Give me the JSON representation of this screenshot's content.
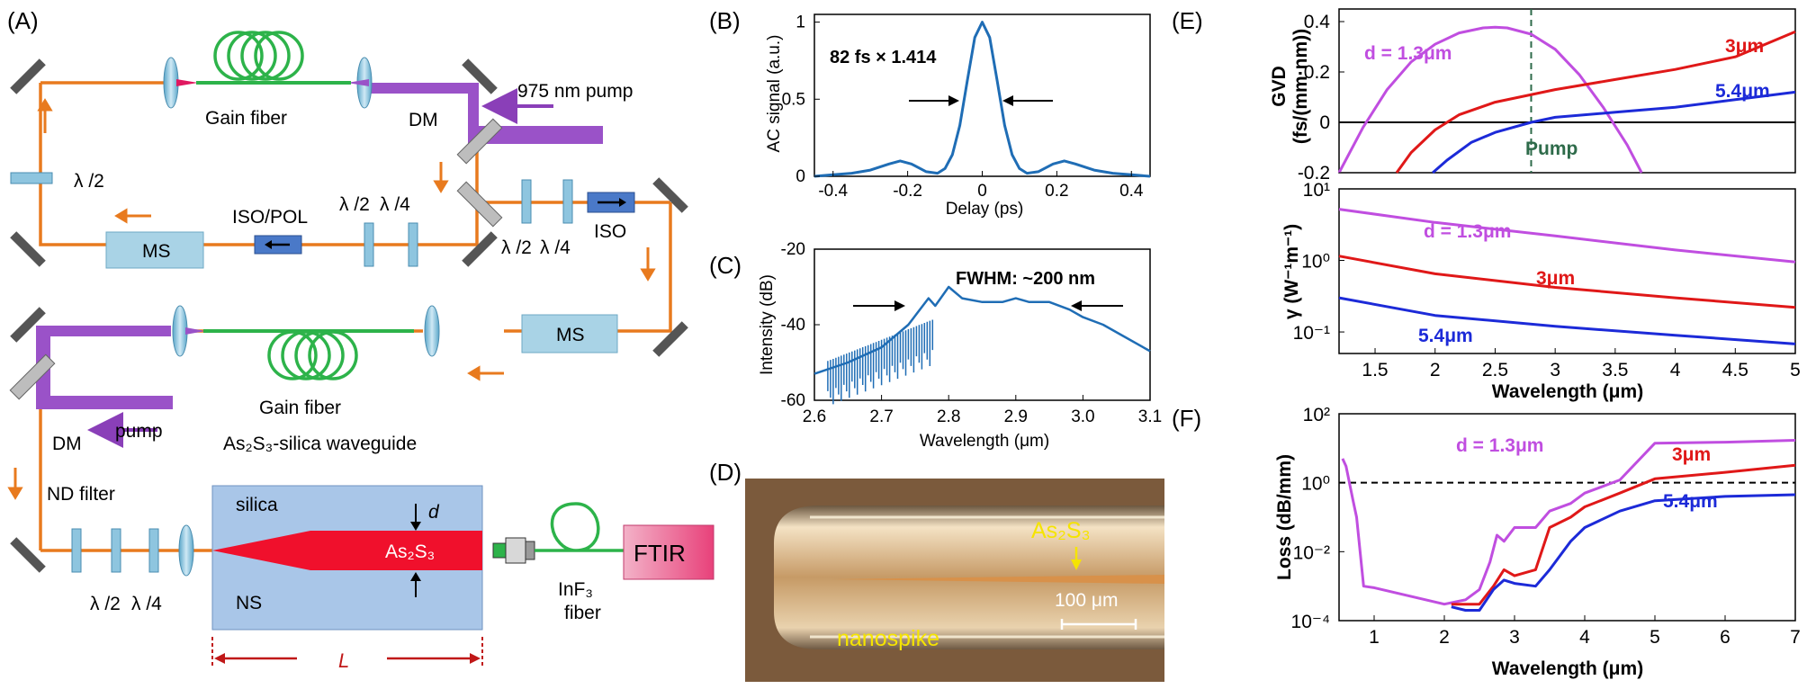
{
  "panels": {
    "a": {
      "letter": "(A)",
      "gain_fiber_top": "Gain fiber",
      "dm_top": "DM",
      "pump_975": "975 nm pump",
      "hwp_left": "λ /2",
      "iso_pol": "ISO/POL",
      "hwp_mid": "λ /2",
      "qwp_mid": "λ /4",
      "ms_left": "MS",
      "hwp_right": "λ /2",
      "qwp_right": "λ /4",
      "iso": "ISO",
      "ms_right": "MS",
      "gain_fiber_bottom": "Gain fiber",
      "dm_bottom": "DM",
      "pump": "pump",
      "waveguide_title": "As₂S₃-silica waveguide",
      "nd_filter": "ND filter",
      "hwp_bottom": "λ /2",
      "qwp_bottom": "λ /4",
      "silica": "silica",
      "ns": "NS",
      "d_label": "d",
      "as2s3": "As₂S₃",
      "length": "L",
      "inf3_fiber_1": "InF₃",
      "inf3_fiber_2": "fiber",
      "ftir": "FTIR"
    },
    "b": {
      "letter": "(B)",
      "annotation": "82 fs × 1.414",
      "xlabel": "Delay (ps)",
      "ylabel": "AC signal (a.u.)",
      "xticks": [
        "-0.4",
        "-0.2",
        "0",
        "0.2",
        "0.4"
      ],
      "yticks": [
        "0",
        "0.5",
        "1"
      ]
    },
    "c": {
      "letter": "(C)",
      "annotation": "FWHM:  ~200 nm",
      "xlabel": "Wavelength (μm)",
      "ylabel": "Intensity (dB)",
      "xticks": [
        "2.6",
        "2.7",
        "2.8",
        "2.9",
        "3.0",
        "3.1"
      ],
      "yticks": [
        "-20",
        "-40",
        "-60"
      ]
    },
    "d": {
      "letter": "(D)",
      "as2s3": "As₂S₃",
      "nanospike": "nanospike",
      "scale": "100 μm"
    },
    "e": {
      "letter": "(E)",
      "ylabel_top_1": "GVD",
      "ylabel_top_2": "(fs/(mm·nm))",
      "yticks_top": [
        "0.4",
        "0.2",
        "0",
        "-0.2"
      ],
      "pump_label": "Pump",
      "ylabel_bottom": "γ (W⁻¹m⁻¹)",
      "yticks_bottom": [
        "10¹",
        "10⁰",
        "10⁻¹"
      ],
      "xticks": [
        "1.5",
        "2",
        "2.5",
        "3",
        "3.5",
        "4",
        "4.5",
        "5"
      ],
      "xlabel": "Wavelength (μm)",
      "series": {
        "d13": "d = 1.3μm",
        "d3": "3μm",
        "d54": "5.4μm"
      }
    },
    "f": {
      "letter": "(F)",
      "ylabel": "Loss (dB/mm)",
      "yticks": [
        "10²",
        "10⁰",
        "10⁻²",
        "10⁻⁴"
      ],
      "xticks": [
        "1",
        "2",
        "3",
        "4",
        "5",
        "6",
        "7"
      ],
      "xlabel": "Wavelength (μm)",
      "series": {
        "d13": "d = 1.3μm",
        "d3": "3μm",
        "d54": "5.4μm"
      }
    }
  },
  "chart_data": [
    {
      "panel": "B",
      "type": "line",
      "xlim": [
        -0.45,
        0.45
      ],
      "ylim": [
        0,
        1.05
      ],
      "x": [
        -0.45,
        -0.4,
        -0.35,
        -0.3,
        -0.25,
        -0.22,
        -0.19,
        -0.15,
        -0.12,
        -0.1,
        -0.08,
        -0.06,
        -0.04,
        -0.02,
        0,
        0.02,
        0.04,
        0.06,
        0.08,
        0.1,
        0.12,
        0.15,
        0.19,
        0.22,
        0.25,
        0.3,
        0.35,
        0.4,
        0.45
      ],
      "y": [
        0.0,
        0.01,
        0.02,
        0.04,
        0.08,
        0.1,
        0.08,
        0.03,
        0.02,
        0.05,
        0.14,
        0.33,
        0.62,
        0.9,
        1.0,
        0.9,
        0.62,
        0.33,
        0.14,
        0.05,
        0.02,
        0.03,
        0.08,
        0.1,
        0.08,
        0.04,
        0.02,
        0.01,
        0.0
      ]
    },
    {
      "panel": "C",
      "type": "line",
      "xlim": [
        2.6,
        3.1
      ],
      "ylim": [
        -60,
        -20
      ],
      "x": [
        2.6,
        2.65,
        2.7,
        2.74,
        2.77,
        2.78,
        2.8,
        2.82,
        2.85,
        2.88,
        2.9,
        2.92,
        2.95,
        2.98,
        3.0,
        3.03,
        3.06,
        3.1
      ],
      "y": [
        -53,
        -50,
        -46,
        -40,
        -33,
        -35,
        -30,
        -33,
        -34,
        -34,
        -33,
        -34,
        -34,
        -36,
        -38,
        -40,
        -43,
        -47
      ]
    },
    {
      "panel": "E-top",
      "type": "line",
      "ylabel": "GVD (fs/(mm·nm))",
      "xlim": [
        1.2,
        5
      ],
      "ylim": [
        -0.2,
        0.45
      ],
      "pump_x": 2.8,
      "series": [
        {
          "name": "d = 1.3μm",
          "color": "#c04ee0",
          "x": [
            1.2,
            1.4,
            1.6,
            1.8,
            2.0,
            2.2,
            2.4,
            2.5,
            2.6,
            2.8,
            3.0,
            3.2,
            3.4,
            3.6,
            3.72
          ],
          "y": [
            -0.2,
            -0.02,
            0.13,
            0.24,
            0.31,
            0.355,
            0.375,
            0.378,
            0.375,
            0.35,
            0.29,
            0.19,
            0.06,
            -0.09,
            -0.2
          ]
        },
        {
          "name": "3μm",
          "color": "#e01818",
          "x": [
            1.68,
            1.8,
            2.0,
            2.2,
            2.5,
            3.0,
            3.5,
            4.0,
            4.5,
            5.0
          ],
          "y": [
            -0.2,
            -0.12,
            -0.03,
            0.03,
            0.08,
            0.13,
            0.17,
            0.21,
            0.26,
            0.36
          ]
        },
        {
          "name": "5.4μm",
          "color": "#1c2ad8",
          "x": [
            1.98,
            2.1,
            2.3,
            2.5,
            2.8,
            3.0,
            3.5,
            4.0,
            4.5,
            5.0
          ],
          "y": [
            -0.2,
            -0.15,
            -0.08,
            -0.04,
            0.0,
            0.02,
            0.04,
            0.06,
            0.09,
            0.12
          ]
        }
      ]
    },
    {
      "panel": "E-bottom",
      "type": "line",
      "ylabel": "γ (W⁻¹m⁻¹)",
      "yscale": "log",
      "xlim": [
        1.2,
        5
      ],
      "ylim": [
        0.05,
        10
      ],
      "series": [
        {
          "name": "d = 1.3μm",
          "color": "#c04ee0",
          "x": [
            1.2,
            2,
            3,
            4,
            5
          ],
          "y": [
            5.2,
            3.4,
            2.2,
            1.4,
            0.95
          ]
        },
        {
          "name": "3μm",
          "color": "#e01818",
          "x": [
            1.2,
            2,
            3,
            4,
            5
          ],
          "y": [
            1.15,
            0.65,
            0.42,
            0.3,
            0.22
          ]
        },
        {
          "name": "5.4μm",
          "color": "#1c2ad8",
          "x": [
            1.2,
            2,
            3,
            4,
            5
          ],
          "y": [
            0.3,
            0.17,
            0.12,
            0.09,
            0.068
          ]
        }
      ]
    },
    {
      "panel": "F",
      "type": "line",
      "ylabel": "Loss (dB/mm)",
      "xlabel": "Wavelength (μm)",
      "yscale": "log",
      "xlim": [
        0.5,
        7
      ],
      "ylim": [
        0.0001,
        100
      ],
      "reference_line": 1,
      "series": [
        {
          "name": "d = 1.3μm",
          "color": "#c04ee0",
          "x": [
            0.55,
            0.6,
            0.7,
            0.75,
            0.85,
            1.0,
            2.0,
            2.3,
            2.5,
            2.65,
            2.75,
            2.85,
            3.0,
            3.3,
            3.5,
            3.8,
            4.0,
            4.5,
            5.0,
            6.0,
            7.0
          ],
          "y": [
            5,
            3,
            0.3,
            0.1,
            0.001,
            0.0009,
            0.0003,
            0.0004,
            0.0008,
            0.005,
            0.03,
            0.02,
            0.05,
            0.05,
            0.15,
            0.25,
            0.5,
            1.2,
            14,
            15,
            17
          ]
        },
        {
          "name": "3μm",
          "color": "#e01818",
          "x": [
            2.1,
            2.3,
            2.5,
            2.7,
            2.85,
            3.0,
            3.3,
            3.5,
            3.8,
            4.0,
            4.5,
            5.0,
            6.0,
            7.0
          ],
          "y": [
            0.0003,
            0.0003,
            0.0003,
            0.001,
            0.003,
            0.002,
            0.003,
            0.05,
            0.1,
            0.2,
            0.5,
            1.3,
            2.0,
            3.2
          ]
        },
        {
          "name": "5.4μm",
          "color": "#1c2ad8",
          "x": [
            2.1,
            2.3,
            2.5,
            2.7,
            2.85,
            3.0,
            3.3,
            3.5,
            3.8,
            4.0,
            4.5,
            5.0,
            6.0,
            7.0
          ],
          "y": [
            0.00025,
            0.0002,
            0.0002,
            0.0008,
            0.0015,
            0.0012,
            0.001,
            0.003,
            0.02,
            0.05,
            0.15,
            0.3,
            0.4,
            0.45
          ]
        }
      ]
    }
  ]
}
